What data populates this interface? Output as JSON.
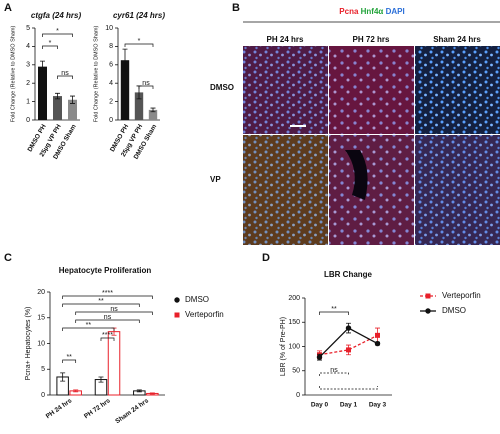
{
  "panel_labels": [
    "A",
    "B",
    "C",
    "D"
  ],
  "micrograph": {
    "stain_labels": [
      {
        "text": "Pcna",
        "color": "#e8202a"
      },
      {
        "text": "Hnf4α",
        "color": "#22a33a"
      },
      {
        "text": "DAPI",
        "color": "#2b6fd8"
      }
    ],
    "columns": [
      "PH 24 hrs",
      "PH 72 hrs",
      "Sham 24 hrs"
    ],
    "rows": [
      "DMSO",
      "VP"
    ]
  },
  "chart_data": [
    {
      "type": "bar",
      "title": "ctgfa (24 hrs)",
      "y_label": "Fold Change (Relative to DMSO Sham)",
      "categories": [
        "DMSO PH",
        "25µg VP PH",
        "DMSO Sham"
      ],
      "values": [
        2.9,
        1.3,
        1.1
      ],
      "errors": [
        0.3,
        0.15,
        0.2
      ],
      "colors": [
        "#111111",
        "#555555",
        "#8a8a8a"
      ],
      "ylim": [
        0,
        5
      ],
      "yticks": [
        0,
        1,
        2,
        3,
        4,
        5
      ],
      "annotations": [
        "*",
        "*",
        "ns"
      ]
    },
    {
      "type": "bar",
      "title": "cyr61 (24 hrs)",
      "y_label": "Fold Change (Relative to DMSO Sham)",
      "categories": [
        "DMSO PH",
        "25µg VP PH",
        "DMSO Sham"
      ],
      "values": [
        6.5,
        3,
        1.1
      ],
      "errors": [
        1.2,
        0.7,
        0.2
      ],
      "colors": [
        "#111111",
        "#555555",
        "#8a8a8a"
      ],
      "ylim": [
        0,
        10
      ],
      "yticks": [
        0,
        2,
        4,
        6,
        8,
        10
      ],
      "annotations": [
        "*",
        "ns"
      ]
    },
    {
      "type": "grouped_bar",
      "title": "Hepatocyte Proliferation",
      "y_label": "Pcna+ Hepatocytes (%)",
      "categories": [
        "PH 24 hrs",
        "PH 72 hrs",
        "Sham 24 hrs"
      ],
      "series": [
        {
          "name": "DMSO",
          "color": "#111111",
          "values": [
            3.5,
            3,
            0.8
          ],
          "errors": [
            0.8,
            0.5,
            0.2
          ]
        },
        {
          "name": "Verteporfin",
          "color": "#e8202a",
          "values": [
            0.8,
            12.3,
            0.3
          ],
          "errors": [
            0.2,
            0.7,
            0.1
          ]
        }
      ],
      "ylim": [
        0,
        20
      ],
      "yticks": [
        0,
        5,
        10,
        15,
        20
      ],
      "annotations": [
        "****",
        "**",
        "ns",
        "ns",
        "**",
        "**",
        "****"
      ]
    },
    {
      "type": "line",
      "title": "LBR Change",
      "y_label": "LBR (% of Pre-PH)",
      "categories": [
        "Day 0",
        "Day 1",
        "Day 3"
      ],
      "series": [
        {
          "name": "Verteporfin",
          "color": "#e8202a",
          "line_style": "dashed",
          "marker": "square",
          "values": [
            83,
            93,
            123
          ],
          "errors": [
            8,
            10,
            15
          ]
        },
        {
          "name": "DMSO",
          "color": "#111111",
          "line_style": "solid",
          "marker": "circle",
          "values": [
            78,
            138,
            106
          ],
          "errors": [
            6,
            10,
            3
          ]
        }
      ],
      "ylim": [
        0,
        200
      ],
      "yticks": [
        0,
        50,
        100,
        150,
        200
      ],
      "annotations": [
        "**",
        "ns"
      ]
    }
  ]
}
